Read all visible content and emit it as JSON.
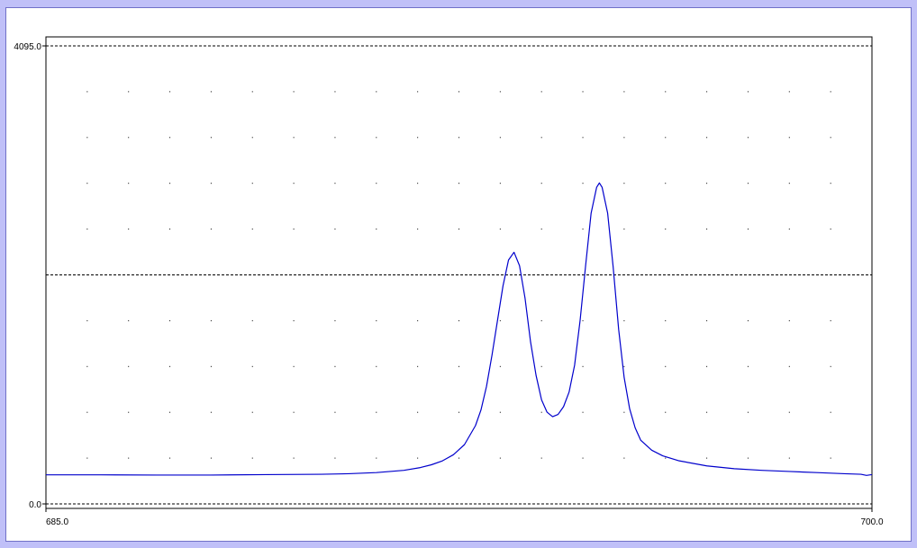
{
  "chart_data": {
    "type": "line",
    "xlim": [
      685.0,
      700.0
    ],
    "ylim": [
      0.0,
      4095.0
    ],
    "x_ticks": [
      {
        "value": 685.0,
        "label": "685.0"
      },
      {
        "value": 700.0,
        "label": "700.0"
      }
    ],
    "y_ticks": [
      {
        "value": 0.0,
        "label": "0.0"
      },
      {
        "value": 4095.0,
        "label": "4095.0"
      }
    ],
    "dashed_lines_y": [
      0.0,
      2047.5,
      4095.0
    ],
    "dot_grid": {
      "x_divisions": 20,
      "y_divisions": 10
    },
    "grid": "dotted",
    "series": [
      {
        "color": "#0000cc",
        "points": [
          [
            685.0,
            260
          ],
          [
            686.0,
            260
          ],
          [
            687.0,
            258
          ],
          [
            688.0,
            258
          ],
          [
            689.0,
            262
          ],
          [
            690.0,
            265
          ],
          [
            690.5,
            270
          ],
          [
            691.0,
            280
          ],
          [
            691.5,
            300
          ],
          [
            691.8,
            325
          ],
          [
            692.0,
            350
          ],
          [
            692.2,
            385
          ],
          [
            692.4,
            440
          ],
          [
            692.6,
            530
          ],
          [
            692.8,
            700
          ],
          [
            692.9,
            840
          ],
          [
            693.0,
            1050
          ],
          [
            693.1,
            1330
          ],
          [
            693.2,
            1640
          ],
          [
            693.3,
            1950
          ],
          [
            693.4,
            2180
          ],
          [
            693.5,
            2250
          ],
          [
            693.6,
            2130
          ],
          [
            693.7,
            1840
          ],
          [
            693.8,
            1450
          ],
          [
            693.9,
            1150
          ],
          [
            694.0,
            930
          ],
          [
            694.1,
            820
          ],
          [
            694.2,
            780
          ],
          [
            694.3,
            800
          ],
          [
            694.4,
            870
          ],
          [
            694.5,
            1000
          ],
          [
            694.6,
            1240
          ],
          [
            694.7,
            1640
          ],
          [
            694.8,
            2130
          ],
          [
            694.9,
            2600
          ],
          [
            695.0,
            2830
          ],
          [
            695.05,
            2870
          ],
          [
            695.1,
            2830
          ],
          [
            695.2,
            2600
          ],
          [
            695.3,
            2120
          ],
          [
            695.4,
            1560
          ],
          [
            695.5,
            1130
          ],
          [
            695.6,
            850
          ],
          [
            695.7,
            680
          ],
          [
            695.8,
            570
          ],
          [
            696.0,
            480
          ],
          [
            696.2,
            430
          ],
          [
            696.5,
            385
          ],
          [
            697.0,
            340
          ],
          [
            697.5,
            315
          ],
          [
            698.0,
            300
          ],
          [
            698.5,
            290
          ],
          [
            699.0,
            280
          ],
          [
            699.5,
            270
          ],
          [
            699.8,
            265
          ],
          [
            699.9,
            255
          ],
          [
            700.0,
            262
          ]
        ]
      }
    ]
  }
}
